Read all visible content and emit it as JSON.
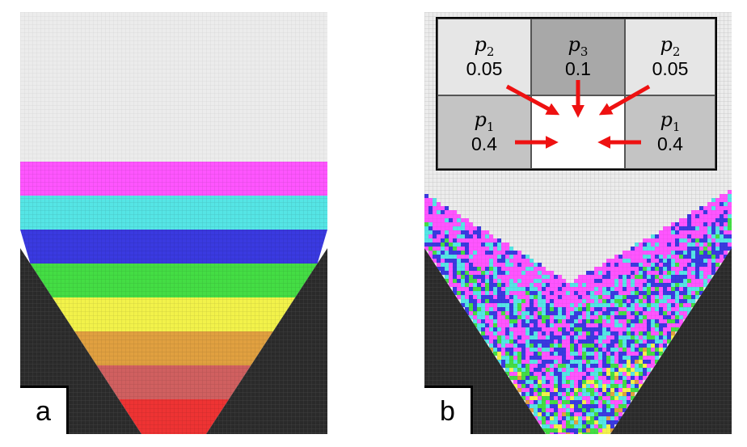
{
  "panels": [
    {
      "id": "a",
      "label": "a"
    },
    {
      "id": "b",
      "label": "b"
    }
  ],
  "layer_colors": [
    "#ff55ff",
    "#55e5e5",
    "#3a3ae0",
    "#44dd44",
    "#f2f24a",
    "#e0a040",
    "#d06060",
    "#ee3333"
  ],
  "colors": {
    "empty_grid": "#ececec",
    "wall": "#2a2a2a",
    "arrow": "#ee1111"
  },
  "neighborhood": {
    "top_row": [
      {
        "symbol": "p",
        "sub": "2",
        "value": "0.05",
        "shade": "#e6e6e6"
      },
      {
        "symbol": "p",
        "sub": "3",
        "value": "0.1",
        "shade": "#a8a8a8"
      },
      {
        "symbol": "p",
        "sub": "2",
        "value": "0.05",
        "shade": "#e6e6e6"
      }
    ],
    "middle_row": [
      {
        "symbol": "p",
        "sub": "1",
        "value": "0.4",
        "shade": "#c4c4c4"
      },
      {
        "symbol": "",
        "sub": "",
        "value": "",
        "shade": "#ffffff"
      },
      {
        "symbol": "p",
        "sub": "1",
        "value": "0.4",
        "shade": "#c4c4c4"
      }
    ]
  }
}
